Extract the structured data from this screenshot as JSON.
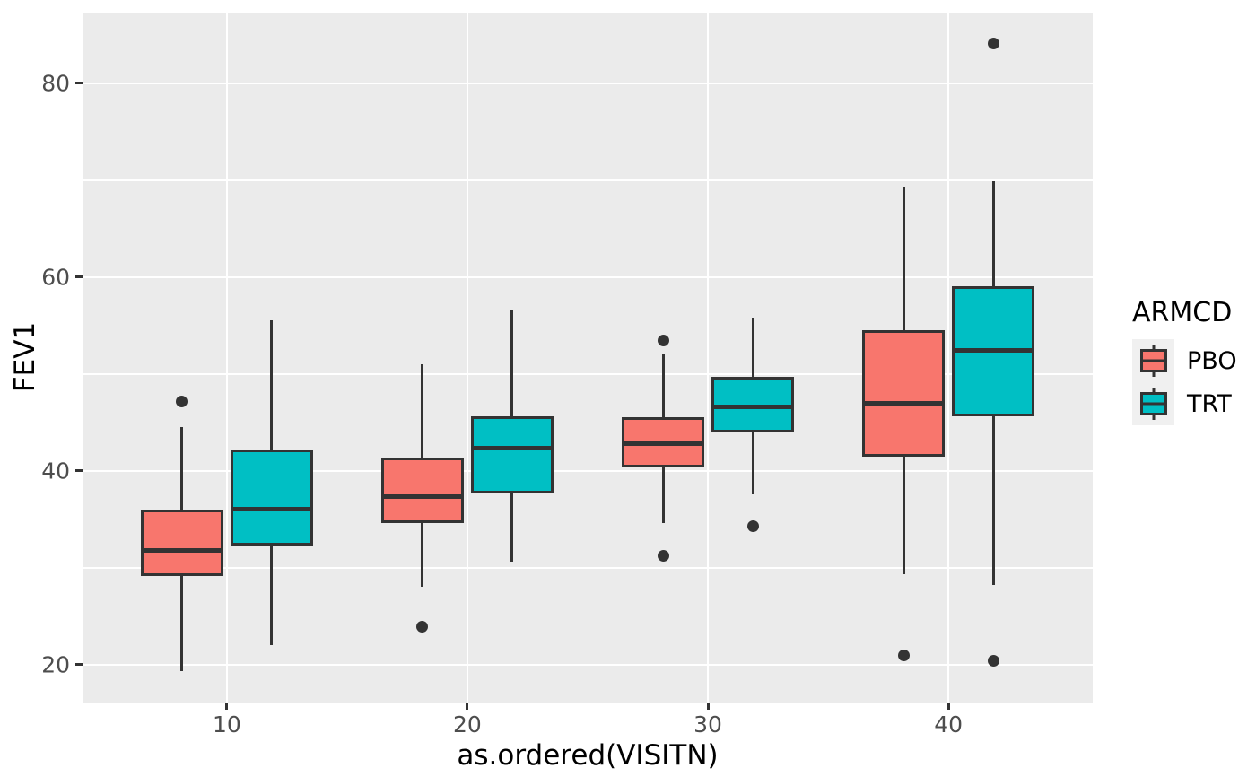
{
  "chart_data": {
    "type": "boxplot",
    "title": "",
    "xlabel": "as.ordered(VISITN)",
    "ylabel": "FEV1",
    "x_categories": [
      "10",
      "20",
      "30",
      "40"
    ],
    "y_ticks": [
      20,
      40,
      60,
      80
    ],
    "y_minor_ticks": [
      30,
      50,
      70
    ],
    "ylim": [
      16.1,
      87.3
    ],
    "grid": true,
    "legend": {
      "title": "ARMCD",
      "position": "right",
      "entries": [
        {
          "label": "PBO",
          "color": "#F8766D"
        },
        {
          "label": "TRT",
          "color": "#00BFC4"
        }
      ]
    },
    "series": [
      {
        "name": "PBO",
        "color": "#F8766D",
        "boxes": [
          {
            "x": "10",
            "whisker_low": 19.3,
            "q1": 29.2,
            "median": 32.1,
            "q3": 36.0,
            "whisker_high": 44.5,
            "outliers": [
              47.2
            ]
          },
          {
            "x": "20",
            "whisker_low": 28.0,
            "q1": 34.6,
            "median": 37.6,
            "q3": 41.4,
            "whisker_high": 51.0,
            "outliers": [
              23.9
            ]
          },
          {
            "x": "30",
            "whisker_low": 34.6,
            "q1": 40.4,
            "median": 43.1,
            "q3": 45.5,
            "whisker_high": 52.0,
            "outliers": [
              53.5,
              31.2
            ]
          },
          {
            "x": "40",
            "whisker_low": 29.3,
            "q1": 41.5,
            "median": 47.3,
            "q3": 54.5,
            "whisker_high": 69.3,
            "outliers": [
              21.0
            ]
          }
        ]
      },
      {
        "name": "TRT",
        "color": "#00BFC4",
        "boxes": [
          {
            "x": "10",
            "whisker_low": 22.0,
            "q1": 32.3,
            "median": 36.3,
            "q3": 42.2,
            "whisker_high": 55.5,
            "outliers": []
          },
          {
            "x": "20",
            "whisker_low": 30.6,
            "q1": 37.7,
            "median": 42.6,
            "q3": 45.6,
            "whisker_high": 56.6,
            "outliers": []
          },
          {
            "x": "30",
            "whisker_low": 37.6,
            "q1": 44.0,
            "median": 46.9,
            "q3": 49.7,
            "whisker_high": 55.8,
            "outliers": [
              34.3
            ]
          },
          {
            "x": "40",
            "whisker_low": 28.2,
            "q1": 45.6,
            "median": 52.7,
            "q3": 59.1,
            "whisker_high": 69.9,
            "outliers": [
              84.1,
              20.4
            ]
          }
        ]
      }
    ],
    "style": {
      "panel_bg": "#EBEBEB",
      "grid_color": "#FFFFFF",
      "box_border_color": "#333333",
      "outlier_color": "#333333",
      "axis_text_color": "#4D4D4D",
      "axis_title_color": "#000000",
      "legend_key_bg": "#F0F0F0"
    }
  }
}
